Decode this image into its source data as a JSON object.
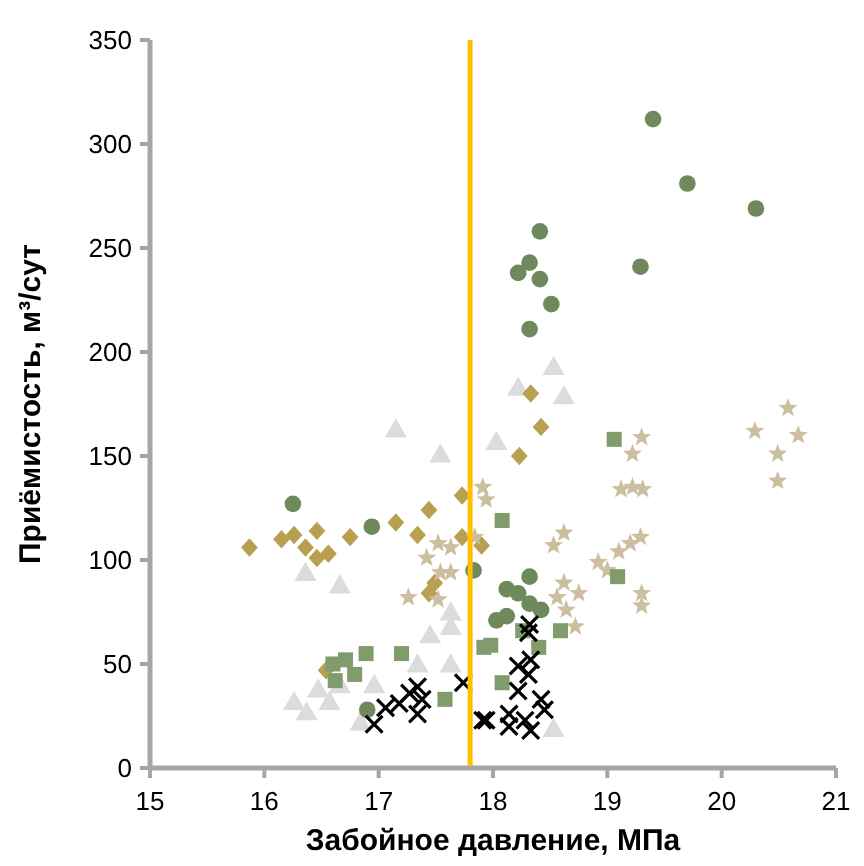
{
  "chart_data": {
    "type": "scatter",
    "xlabel": "Забойное давление, МПа",
    "ylabel": "Приёмистость, м³/сут",
    "xlim": [
      15,
      21
    ],
    "ylim": [
      0,
      350
    ],
    "xticks": [
      15,
      16,
      17,
      18,
      19,
      20,
      21
    ],
    "yticks": [
      0,
      50,
      100,
      150,
      200,
      250,
      300,
      350
    ],
    "grid": false,
    "ref_lines": [
      {
        "axis": "x",
        "value": 17.8,
        "color": "#ffc000"
      }
    ],
    "series": [
      {
        "color": "#dcdcdc",
        "marker": "triangle",
        "x": [
          17.15,
          17.54,
          16.36,
          16.66,
          17.63,
          17.63,
          17.45,
          17.34,
          17.63,
          16.26,
          16.37,
          16.47,
          16.57,
          16.66,
          16.96,
          16.84,
          18.22,
          18.62,
          18.03,
          18.53,
          18.53
        ],
        "values": [
          162,
          150,
          93,
          87,
          74,
          67,
          63,
          49,
          49,
          31,
          26,
          37,
          31,
          39,
          39,
          21,
          182,
          178,
          156,
          18,
          192
        ]
      },
      {
        "color": "#b8a050",
        "marker": "diamond",
        "x": [
          15.87,
          16.15,
          16.26,
          16.46,
          16.36,
          16.46,
          16.56,
          16.75,
          17.15,
          17.34,
          17.44,
          17.73,
          17.73,
          17.9,
          17.44,
          17.49,
          16.54,
          18.33,
          18.42,
          18.23
        ],
        "values": [
          106,
          110,
          112,
          114,
          106,
          101,
          103,
          111,
          118,
          112,
          124,
          131,
          111,
          107,
          84,
          89,
          47,
          180,
          164,
          150
        ]
      },
      {
        "color": "#cbbf9f",
        "marker": "star",
        "x": [
          20.58,
          20.29,
          20.67,
          20.49,
          20.49,
          19.3,
          19.22,
          19.12,
          19.22,
          19.31,
          17.94,
          18.62,
          18.53,
          19.29,
          19.2,
          19.1,
          18.92,
          19.0,
          17.84,
          18.62,
          18.56,
          18.75,
          18.64,
          18.72,
          19.3,
          19.3,
          17.91,
          17.52,
          17.63,
          17.42,
          17.54,
          17.63,
          17.26,
          17.52
        ],
        "values": [
          173,
          162,
          160,
          151,
          138,
          159,
          151,
          134,
          135,
          134,
          129,
          113,
          107,
          111,
          108,
          104,
          99,
          95,
          111,
          89,
          82,
          84,
          76,
          68,
          84,
          78,
          135,
          108,
          106,
          101,
          94,
          94,
          82,
          81
        ]
      },
      {
        "color": "#809c6c",
        "marker": "square",
        "x": [
          16.6,
          16.71,
          16.89,
          17.2,
          16.62,
          16.79,
          17.58,
          17.92,
          19.06,
          18.08,
          19.09,
          17.98,
          18.26,
          18.4,
          18.08,
          18.59
        ],
        "values": [
          50,
          52,
          55,
          55,
          42,
          45,
          33,
          58,
          158,
          119,
          92,
          59,
          66,
          58,
          41,
          66
        ]
      },
      {
        "color": "#6e8a5c",
        "marker": "circle",
        "x": [
          19.4,
          19.7,
          20.3,
          18.41,
          18.32,
          18.22,
          18.41,
          19.29,
          18.51,
          18.32,
          16.25,
          16.94,
          17.83,
          18.32,
          18.12,
          18.22,
          18.32,
          18.42,
          18.03,
          18.12,
          16.9
        ],
        "values": [
          312,
          281,
          269,
          258,
          243,
          238,
          235,
          241,
          223,
          211,
          127,
          116,
          95,
          92,
          86,
          84,
          79,
          76,
          71,
          73,
          28
        ]
      },
      {
        "color": "#000000",
        "marker": "cross",
        "x": [
          16.96,
          17.06,
          17.18,
          17.27,
          17.34,
          17.38,
          17.34,
          17.74,
          17.91,
          17.94,
          18.14,
          18.14,
          18.28,
          18.31,
          18.31,
          18.22,
          18.33,
          18.42,
          18.22,
          18.33,
          18.45,
          18.32
        ],
        "values": [
          21,
          29,
          31,
          36,
          39,
          33,
          26,
          41,
          23,
          23,
          26,
          20,
          23,
          65,
          45,
          49,
          52,
          33,
          37,
          18,
          28,
          69
        ]
      }
    ]
  }
}
